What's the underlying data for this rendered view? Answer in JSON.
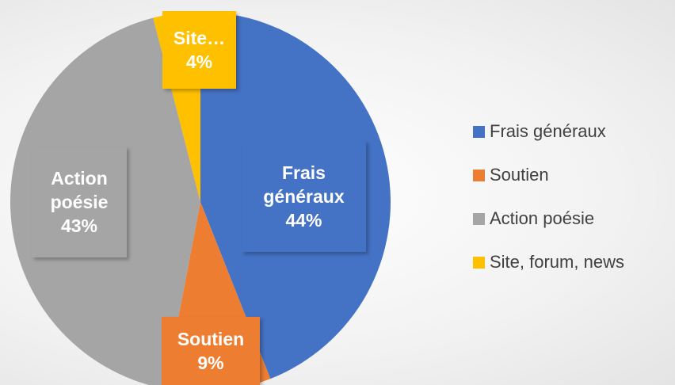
{
  "chart_data": {
    "type": "pie",
    "categories": [
      "Frais généraux",
      "Soutien",
      "Action poésie",
      "Site, forum, news"
    ],
    "values": [
      44,
      9,
      43,
      4
    ],
    "value_labels": [
      "44%",
      "9%",
      "43%",
      "4%"
    ],
    "slice_labels": [
      "Frais généraux",
      "Soutien",
      "Action poésie",
      "Site…"
    ],
    "colors": [
      "#4472c4",
      "#ed7d31",
      "#a5a5a5",
      "#ffc000"
    ],
    "legend": "right"
  }
}
